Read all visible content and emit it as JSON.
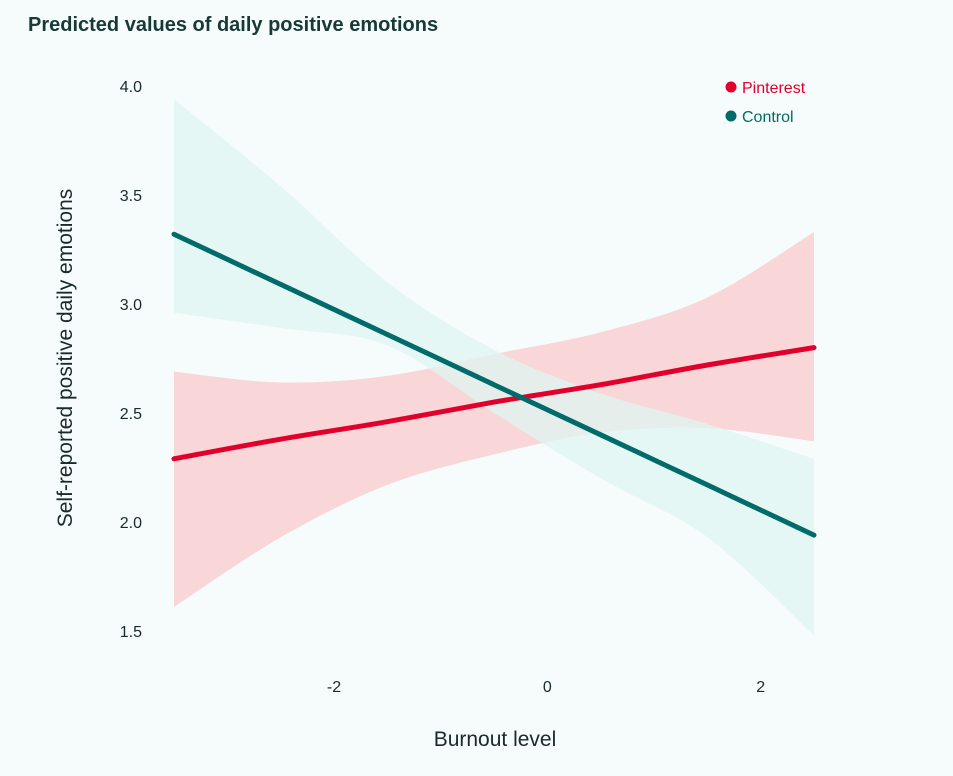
{
  "chart_data": {
    "type": "line",
    "title": "Predicted values of daily positive emotions",
    "xlabel": "Burnout level",
    "ylabel": "Self-reported positive daily emotions",
    "xlim": [
      -3.5,
      2.5
    ],
    "ylim": [
      1.5,
      4.0
    ],
    "x_ticks": [
      -2,
      0,
      2
    ],
    "y_ticks": [
      1.5,
      2.0,
      2.5,
      3.0,
      3.5,
      4.0
    ],
    "y_tick_labels": [
      "1.5",
      "2.0",
      "2.5",
      "3.0",
      "3.5",
      "4.0"
    ],
    "x_tick_labels": [
      "-2",
      "0",
      "2"
    ],
    "grid": false,
    "legend_position": "top-right",
    "series": [
      {
        "name": "Pinterest",
        "color": "#e0002b",
        "band_color": "#f9d6d7",
        "x": [
          -3.5,
          -2.5,
          -1.5,
          -0.5,
          0.5,
          1.5,
          2.5
        ],
        "y": [
          2.29,
          2.38,
          2.46,
          2.55,
          2.63,
          2.72,
          2.8
        ],
        "lower": [
          1.61,
          1.93,
          2.17,
          2.31,
          2.41,
          2.43,
          2.37
        ],
        "upper": [
          2.69,
          2.64,
          2.67,
          2.77,
          2.87,
          3.03,
          3.33
        ]
      },
      {
        "name": "Control",
        "color": "#006b69",
        "band_color": "#dff6f3",
        "x": [
          -3.5,
          -2.5,
          -1.5,
          -0.5,
          0.5,
          1.5,
          2.5
        ],
        "y": [
          3.32,
          3.09,
          2.86,
          2.63,
          2.4,
          2.17,
          1.94
        ],
        "lower": [
          2.96,
          2.89,
          2.81,
          2.5,
          2.2,
          1.93,
          1.48
        ],
        "upper": [
          3.94,
          3.54,
          3.1,
          2.79,
          2.59,
          2.45,
          2.29
        ]
      }
    ]
  }
}
